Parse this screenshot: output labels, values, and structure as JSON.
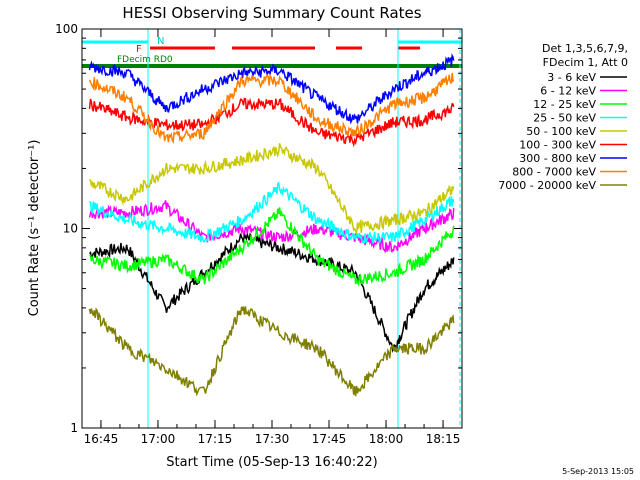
{
  "chart_data": {
    "type": "line",
    "title": "HESSI Observing Summary Count Rates",
    "xlabel": "Start Time (05-Sep-13 16:40:22)",
    "ylabel": "Count Rate (s⁻¹ detector⁻¹)",
    "ylim": [
      1,
      100
    ],
    "yscale": "log",
    "xlim_minutes": [
      16.667,
      18.333
    ],
    "x_ticks": [
      "16:45",
      "17:00",
      "17:15",
      "17:30",
      "17:45",
      "18:00",
      "18:15"
    ],
    "y_ticks": [
      "1",
      "10",
      "100"
    ],
    "timestamp": "5-Sep-2013 15:05",
    "legend": {
      "header_lines": [
        "Det 1,3,5,6,7,9,",
        "FDecim 1, Att 0"
      ],
      "placement": "right-outside"
    },
    "flag_labels": {
      "saa": "N",
      "flare": "F",
      "decimation": "FDecim RD0"
    },
    "series": [
      {
        "name": "3 - 6 keV",
        "color": "#000000",
        "values": [
          7.5,
          8,
          4,
          6,
          9,
          8,
          7,
          6,
          2.5,
          5,
          7
        ]
      },
      {
        "name": "6 - 12 keV",
        "color": "#ff00ff",
        "values": [
          12,
          12,
          13,
          9,
          10,
          9,
          10,
          9,
          8,
          10,
          12
        ]
      },
      {
        "name": "12 - 25 keV",
        "color": "#00ff00",
        "values": [
          7,
          6.5,
          7,
          5.5,
          8,
          12,
          7,
          5.5,
          6,
          7,
          10
        ]
      },
      {
        "name": "25 - 50 keV",
        "color": "#00ffff",
        "values": [
          13,
          11,
          10,
          9,
          11,
          16,
          11,
          9,
          9,
          11,
          14
        ]
      },
      {
        "name": "50 - 100 keV",
        "color": "#c8c800",
        "values": [
          17,
          14,
          20,
          20,
          22,
          25,
          20,
          10,
          11,
          12,
          16
        ]
      },
      {
        "name": "100 - 300 keV",
        "color": "#ff0000",
        "values": [
          42,
          36,
          33,
          33,
          42,
          42,
          30,
          28,
          34,
          35,
          40
        ]
      },
      {
        "name": "300 - 800 keV",
        "color": "#0000ff",
        "values": [
          65,
          60,
          40,
          50,
          60,
          62,
          45,
          35,
          50,
          60,
          70
        ]
      },
      {
        "name": "800 - 7000 keV",
        "color": "#ff8000",
        "values": [
          55,
          45,
          28,
          30,
          55,
          55,
          35,
          30,
          42,
          45,
          58
        ]
      },
      {
        "name": "7000 - 20000 keV",
        "color": "#808000",
        "values": [
          4,
          2.5,
          2,
          1.5,
          4,
          3,
          2.5,
          1.5,
          2.5,
          2.5,
          3.5
        ]
      }
    ],
    "x_sample_times": [
      "16:42",
      "16:52",
      "17:02",
      "17:12",
      "17:22",
      "17:32",
      "17:42",
      "17:52",
      "18:02",
      "18:10",
      "18:18"
    ]
  }
}
